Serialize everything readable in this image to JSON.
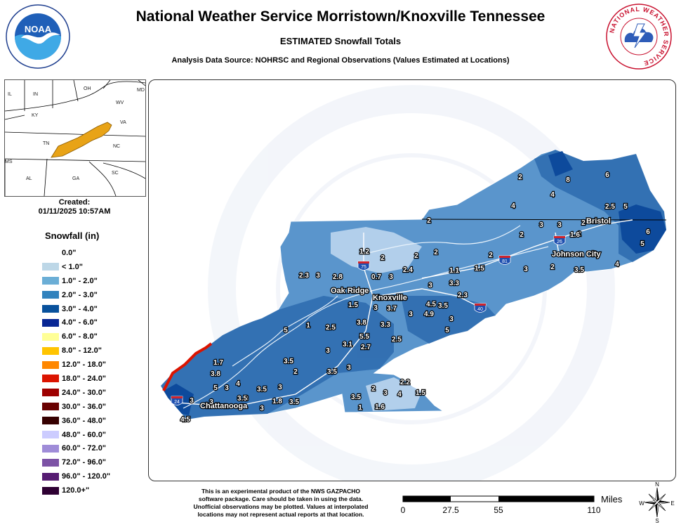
{
  "header": {
    "title": "National Weather Service Morristown/Knoxville Tennessee",
    "subtitle": "ESTIMATED Snowfall Totals",
    "source": "Analysis Data Source: NOHRSC and Regional Observations (Values Estimated at Locations)"
  },
  "logos": {
    "left": "NOAA",
    "right": "NATIONAL WEATHER SERVICE"
  },
  "inset": {
    "state_labels": [
      "IL",
      "IN",
      "OH",
      "WV",
      "KY",
      "VA",
      "TN",
      "NC",
      "MS",
      "AL",
      "GA",
      "SC",
      "MD"
    ]
  },
  "created": {
    "label": "Created:",
    "timestamp": "01/11/2025 10:57AM"
  },
  "legend": {
    "title": "Snowfall (in)",
    "items": [
      {
        "label": "0.0\"",
        "color": "#ffffff"
      },
      {
        "label": "< 1.0\"",
        "color": "#bdd7e7"
      },
      {
        "label": "1.0\" - 2.0\"",
        "color": "#6baed6"
      },
      {
        "label": "2.0\" - 3.0\"",
        "color": "#3182bd"
      },
      {
        "label": "3.0\" - 4.0\"",
        "color": "#08519c"
      },
      {
        "label": "4.0\" - 6.0\"",
        "color": "#082694"
      },
      {
        "label": "6.0\" - 8.0\"",
        "color": "#ffff96"
      },
      {
        "label": "8.0\" - 12.0\"",
        "color": "#ffc400"
      },
      {
        "label": "12.0\" - 18.0\"",
        "color": "#ff8700"
      },
      {
        "label": "18.0\" - 24.0\"",
        "color": "#db1400"
      },
      {
        "label": "24.0\" - 30.0\"",
        "color": "#9e0000"
      },
      {
        "label": "30.0\" - 36.0\"",
        "color": "#690000"
      },
      {
        "label": "36.0\" - 48.0\"",
        "color": "#360000"
      },
      {
        "label": "48.0\" - 60.0\"",
        "color": "#ccccff"
      },
      {
        "label": "60.0\" - 72.0\"",
        "color": "#9f8cd8"
      },
      {
        "label": "72.0\" - 96.0\"",
        "color": "#7c52a5"
      },
      {
        "label": "96.0\" - 120.0\"",
        "color": "#561c72"
      },
      {
        "label": "120.0+\"",
        "color": "#2e0033"
      }
    ]
  },
  "map": {
    "cities": [
      "Oak Ridge",
      "Knoxville",
      "Bristol",
      "Johnson City",
      "Chattanooga"
    ],
    "interstates": [
      "75",
      "81",
      "26",
      "40",
      "24"
    ],
    "values": [
      "8",
      "6",
      "4",
      "2",
      "4",
      "2.5",
      "5",
      "2",
      "3",
      "3",
      "2",
      "1.6",
      "6",
      "2",
      "2",
      "5",
      "1.2",
      "2",
      "2",
      "2",
      "1.5",
      "2",
      "3",
      "2",
      "3.5",
      "4",
      "2.3",
      "3",
      "2.8",
      "0.7",
      "3",
      "2.4",
      "1.1",
      "3",
      "3.3",
      "2.3",
      "1.5",
      "3",
      "3.7",
      "3",
      "4.9",
      "4.5",
      "3.5",
      "5",
      "5",
      "1",
      "3.8",
      "5.5",
      "3.3",
      "2.5",
      "3",
      "2.7",
      "3.1",
      "2.5",
      "1.7",
      "3",
      "3.5",
      "2",
      "3.5",
      "3",
      "3.5",
      "3",
      "3.8",
      "5",
      "3",
      "4",
      "3",
      "3",
      "3.5",
      "3",
      "1.8",
      "3.5",
      "3.5",
      "2",
      "3",
      "4",
      "2.2",
      "1.5",
      "1",
      "1.6",
      "3",
      "4.5"
    ]
  },
  "disclaimer": {
    "lines": [
      "This is an experimental product of the NWS GAZPACHO",
      "software package. Care should be taken in using the data.",
      "Unofficial observations may be plotted. Values at interpolated",
      "locations may not represent actual reports at that location."
    ]
  },
  "scale": {
    "ticks": [
      "0",
      "27.5",
      "55",
      "110"
    ],
    "unit": "Miles"
  },
  "compass": {
    "n": "N",
    "s": "S",
    "e": "E",
    "w": "W"
  }
}
